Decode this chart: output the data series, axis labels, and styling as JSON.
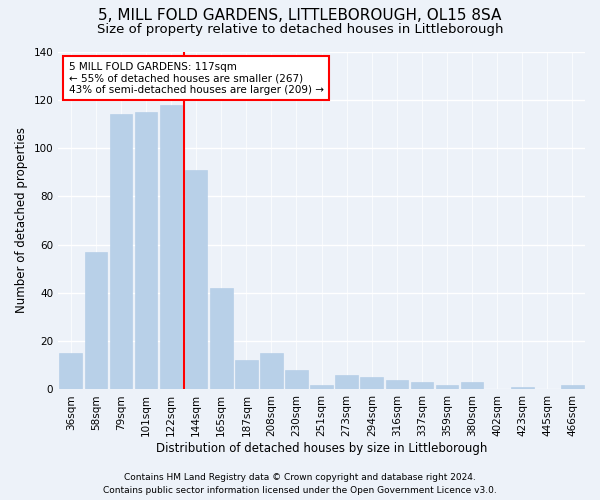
{
  "title": "5, MILL FOLD GARDENS, LITTLEBOROUGH, OL15 8SA",
  "subtitle": "Size of property relative to detached houses in Littleborough",
  "xlabel": "Distribution of detached houses by size in Littleborough",
  "ylabel": "Number of detached properties",
  "categories": [
    "36sqm",
    "58sqm",
    "79sqm",
    "101sqm",
    "122sqm",
    "144sqm",
    "165sqm",
    "187sqm",
    "208sqm",
    "230sqm",
    "251sqm",
    "273sqm",
    "294sqm",
    "316sqm",
    "337sqm",
    "359sqm",
    "380sqm",
    "402sqm",
    "423sqm",
    "445sqm",
    "466sqm"
  ],
  "values": [
    15,
    57,
    114,
    115,
    118,
    91,
    42,
    12,
    15,
    8,
    2,
    6,
    5,
    4,
    3,
    2,
    3,
    0,
    1,
    0,
    2
  ],
  "bar_color": "#b8d0e8",
  "bar_edge_color": "#b8d0e8",
  "vline_color": "red",
  "ylim": [
    0,
    140
  ],
  "yticks": [
    0,
    20,
    40,
    60,
    80,
    100,
    120,
    140
  ],
  "annotation_text": "5 MILL FOLD GARDENS: 117sqm\n← 55% of detached houses are smaller (267)\n43% of semi-detached houses are larger (209) →",
  "annotation_box_color": "#ffffff",
  "annotation_box_edge": "red",
  "footer1": "Contains HM Land Registry data © Crown copyright and database right 2024.",
  "footer2": "Contains public sector information licensed under the Open Government Licence v3.0.",
  "background_color": "#edf2f9",
  "grid_color": "#ffffff",
  "title_fontsize": 11,
  "subtitle_fontsize": 9.5,
  "axis_label_fontsize": 8.5,
  "tick_fontsize": 7.5,
  "footer_fontsize": 6.5,
  "annotation_fontsize": 7.5,
  "vline_xindex": 4
}
